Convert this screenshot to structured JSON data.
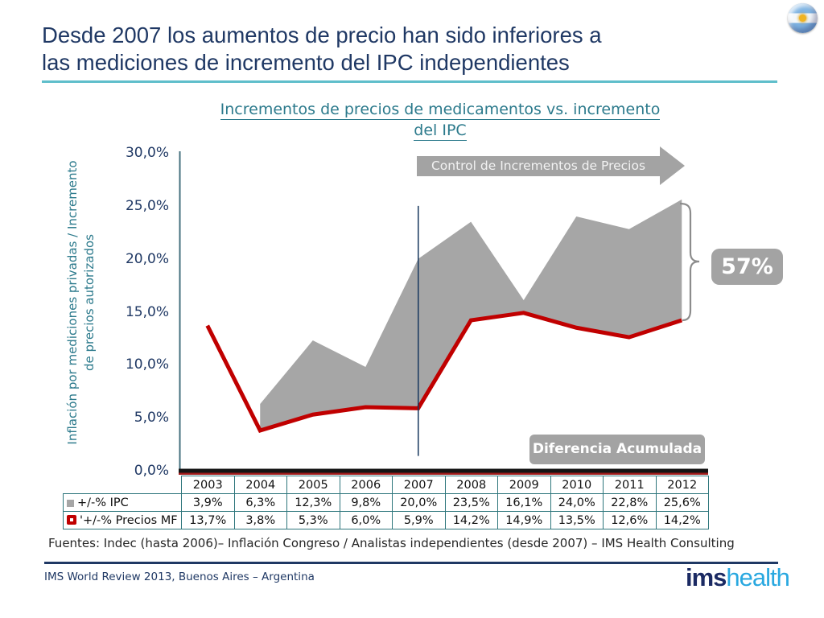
{
  "header": {
    "title_lines": [
      "Desde 2007 los aumentos de precio han sido inferiores a",
      "las mediciones de incremento del IPC independientes"
    ],
    "underline_color": "#5FBECB"
  },
  "flag": {
    "country": "Argentina",
    "stripe_color": "#7FB4E3",
    "sun_color": "#F0B422"
  },
  "chart": {
    "title_lines": [
      "Incrementos de precios de medicamentos vs. incremento",
      "del IPC"
    ],
    "y_axis_label_lines": [
      "Inflación por mediciones privadas / Incremento",
      "de precios autorizados"
    ],
    "arrow_label": "Control de Incrementos de Precios",
    "difference_label": "57%",
    "accumulated_label": "Diferencia Acumulada"
  },
  "chart_data": {
    "type": "area",
    "title": "Incrementos de precios de medicamentos vs. incremento del IPC",
    "xlabel": "",
    "ylabel": "Inflación por mediciones privadas / Incremento de precios autorizados",
    "categories": [
      "2003",
      "2004",
      "2005",
      "2006",
      "2007",
      "2008",
      "2009",
      "2010",
      "2011",
      "2012"
    ],
    "series": [
      {
        "name": "+/-% IPC",
        "render": "gray-band-upper",
        "color": "#A6A6A6",
        "values": [
          3.9,
          6.3,
          12.3,
          9.8,
          20.0,
          23.5,
          16.1,
          24.0,
          22.8,
          25.6
        ]
      },
      {
        "name": "'+/-% Precios MF",
        "render": "line",
        "color": "#C00000",
        "values": [
          13.7,
          3.8,
          5.3,
          6.0,
          5.9,
          14.2,
          14.9,
          13.5,
          12.6,
          14.2
        ]
      }
    ],
    "ylim": [
      0,
      30
    ],
    "y_ticks": {
      "values": [
        30,
        25,
        20,
        15,
        10,
        5,
        0
      ],
      "labels": [
        "30,0%",
        "25,0%",
        "20,0%",
        "15,0%",
        "10,0%",
        "5,0%",
        "0,0%"
      ]
    },
    "grid": false,
    "legend_position": "table-left-column",
    "annotations": {
      "control_start_year": "2007",
      "area_gap_from_index": 1,
      "cumulative_difference": "57%",
      "banner": "Control de Incrementos de Precios",
      "area_label": "Diferencia Acumulada"
    }
  },
  "table": {
    "rows": [
      {
        "marker": "gray-square",
        "marker_color": "#A6A6A6",
        "label": "+/-% IPC",
        "values": [
          "3,9%",
          "6,3%",
          "12,3%",
          "9,8%",
          "20,0%",
          "23,5%",
          "16,1%",
          "24,0%",
          "22,8%",
          "25,6%"
        ]
      },
      {
        "marker": "red-line-marker",
        "marker_color": "#C00000",
        "label": "'+/-% Precios MF",
        "values": [
          "13,7%",
          "3,8%",
          "5,3%",
          "6,0%",
          "5,9%",
          "14,2%",
          "14,9%",
          "13,5%",
          "12,6%",
          "14,2%"
        ]
      }
    ]
  },
  "footer": {
    "sources": "Fuentes: Indec (hasta 2006)– Inflación Congreso / Analistas independientes (desde 2007) – IMS Health Consulting",
    "event": "IMS World Review 2013, Buenos Aires –  Argentina",
    "logo": {
      "bold": "ims",
      "light": "health",
      "bold_color": "#1B2A63",
      "light_color": "#29A8E0"
    }
  }
}
